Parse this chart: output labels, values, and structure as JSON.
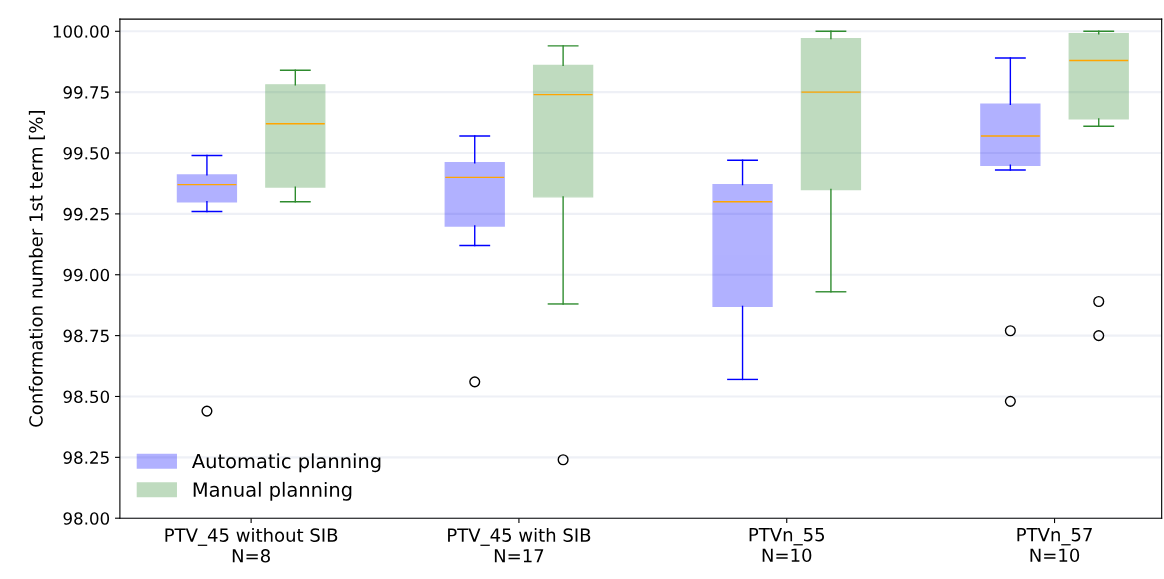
{
  "chart_data": {
    "type": "box",
    "ylabel": "Conformation number 1st term [%]",
    "categories": [
      "PTV_45 without SIB\nN=8",
      "PTV_45 with SIB\nN=17",
      "PTVn_55\nN=10",
      "PTVn_57\nN=10"
    ],
    "series": [
      {
        "name": "Automatic planning",
        "color": "#0000ff",
        "boxes": [
          {
            "low": 99.26,
            "q1": 99.3,
            "median": 99.37,
            "q3": 99.41,
            "high": 99.49,
            "outliers": [
              98.44
            ]
          },
          {
            "low": 99.12,
            "q1": 99.2,
            "median": 99.4,
            "q3": 99.46,
            "high": 99.57,
            "outliers": [
              98.56
            ]
          },
          {
            "low": 98.57,
            "q1": 98.87,
            "median": 99.3,
            "q3": 99.37,
            "high": 99.47
          },
          {
            "low": 99.43,
            "q1": 99.45,
            "median": 99.57,
            "q3": 99.7,
            "high": 99.89,
            "outliers": [
              98.77,
              98.48
            ]
          }
        ]
      },
      {
        "name": "Manual planning",
        "color": "#2e8b2e",
        "boxes": [
          {
            "low": 99.3,
            "q1": 99.36,
            "median": 99.62,
            "q3": 99.78,
            "high": 99.84
          },
          {
            "low": 98.88,
            "q1": 99.32,
            "median": 99.74,
            "q3": 99.86,
            "high": 99.94,
            "outliers": [
              98.24
            ]
          },
          {
            "low": 98.93,
            "q1": 99.35,
            "median": 99.75,
            "q3": 99.97,
            "high": 100.0
          },
          {
            "low": 99.61,
            "q1": 99.64,
            "median": 99.88,
            "q3": 99.99,
            "high": 100.0,
            "outliers": [
              98.89,
              98.75
            ]
          }
        ]
      }
    ],
    "ylim": [
      98.0,
      100.05
    ],
    "yticks": [
      {
        "value": 98.0,
        "label": "98.00"
      },
      {
        "value": 98.25,
        "label": "98.25"
      },
      {
        "value": 98.5,
        "label": "98.50"
      },
      {
        "value": 98.75,
        "label": "98.75"
      },
      {
        "value": 99.0,
        "label": "99.00"
      },
      {
        "value": 99.25,
        "label": "99.25"
      },
      {
        "value": 99.5,
        "label": "99.50"
      },
      {
        "value": 99.75,
        "label": "99.75"
      },
      {
        "value": 100.0,
        "label": "100.00"
      }
    ],
    "grid": "y",
    "legend": "lower left"
  }
}
